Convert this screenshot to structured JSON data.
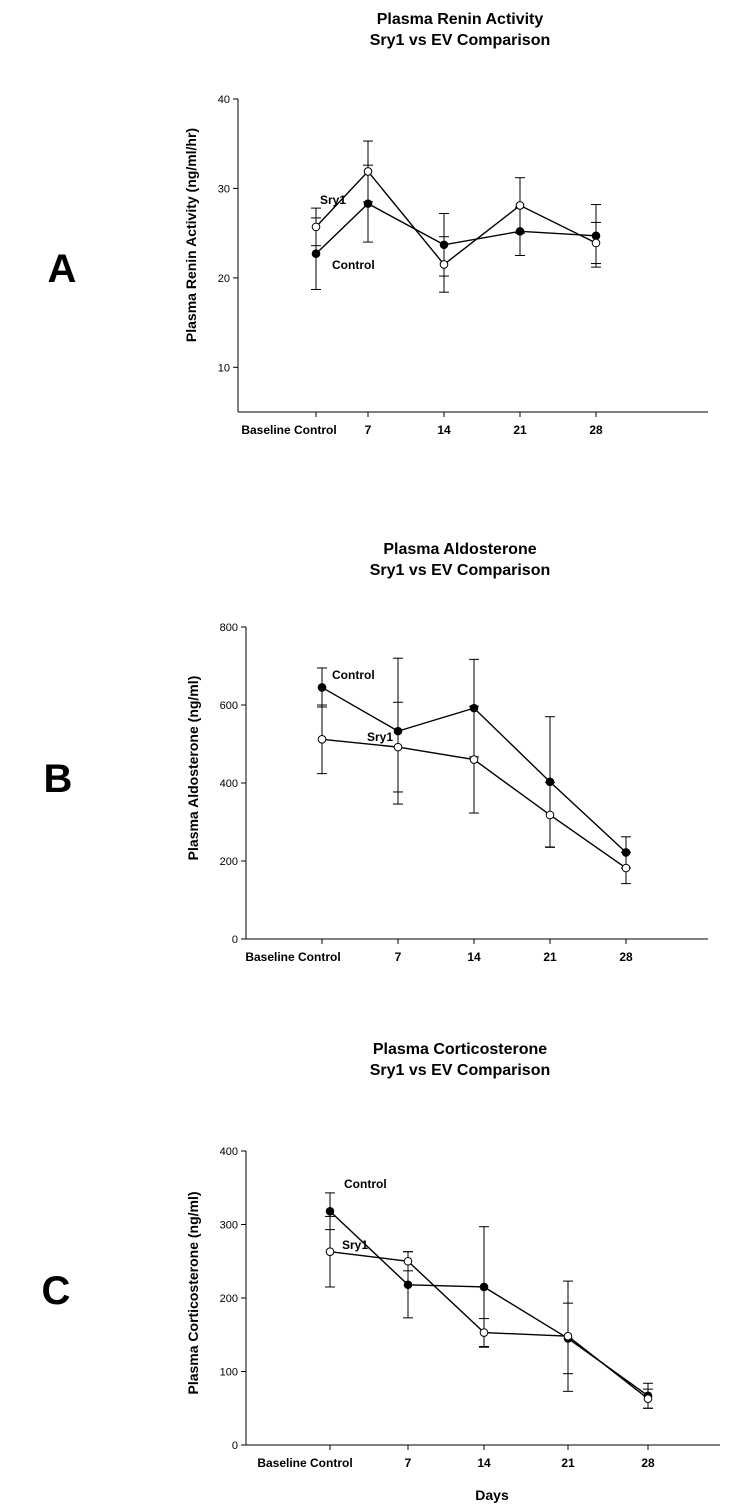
{
  "chart_data": [
    {
      "type": "line",
      "panel_letter": "A",
      "title_line1": "Plasma Renin Activity",
      "title_line2": "Sry1 vs EV Comparison",
      "ylabel": "Plasma Renin Activity (ng/ml/hr)",
      "xlabel": "",
      "ylim": [
        5,
        40
      ],
      "yticks": [
        10,
        20,
        30,
        40
      ],
      "categories": [
        "Baseline Control",
        "7",
        "14",
        "21",
        "28"
      ],
      "series": [
        {
          "name": "Control",
          "style": "filled",
          "values": [
            22.7,
            28.3,
            23.7,
            25.2,
            24.7
          ],
          "errors": [
            4.0,
            4.3,
            3.5,
            2.7,
            3.5
          ]
        },
        {
          "name": "Sry1",
          "style": "open",
          "values": [
            25.7,
            31.9,
            21.5,
            28.1,
            23.9
          ],
          "errors": [
            2.1,
            3.4,
            3.1,
            3.1,
            2.3
          ]
        }
      ]
    },
    {
      "type": "line",
      "panel_letter": "B",
      "title_line1": "Plasma Aldosterone",
      "title_line2": "Sry1 vs EV Comparison",
      "ylabel": "Plasma Aldosterone (ng/ml)",
      "xlabel": "",
      "ylim": [
        0,
        800
      ],
      "yticks": [
        0,
        200,
        400,
        600,
        800
      ],
      "categories": [
        "Baseline Control",
        "7",
        "14",
        "21",
        "28"
      ],
      "series": [
        {
          "name": "Control",
          "style": "filled",
          "values": [
            645,
            533,
            592,
            403,
            222
          ],
          "errors": [
            50,
            187,
            125,
            167,
            40
          ]
        },
        {
          "name": "Sry1",
          "style": "open",
          "values": [
            512,
            492,
            460,
            318,
            182
          ],
          "errors": [
            88,
            115,
            137,
            83,
            40
          ]
        }
      ]
    },
    {
      "type": "line",
      "panel_letter": "C",
      "title_line1": "Plasma Corticosterone",
      "title_line2": "Sry1 vs EV Comparison",
      "ylabel": "Plasma Corticosterone (ng/ml)",
      "xlabel": "Days",
      "ylim": [
        0,
        400
      ],
      "yticks": [
        0,
        100,
        200,
        300,
        400
      ],
      "categories": [
        "Baseline Control",
        "7",
        "14",
        "21",
        "28"
      ],
      "series": [
        {
          "name": "Control",
          "style": "filled",
          "values": [
            318,
            218,
            215,
            145,
            67
          ],
          "errors": [
            25,
            45,
            82,
            48,
            17
          ]
        },
        {
          "name": "Sry1",
          "style": "open",
          "values": [
            263,
            250,
            153,
            148,
            63
          ],
          "errors": [
            48,
            13,
            19,
            75,
            13
          ]
        }
      ]
    }
  ]
}
